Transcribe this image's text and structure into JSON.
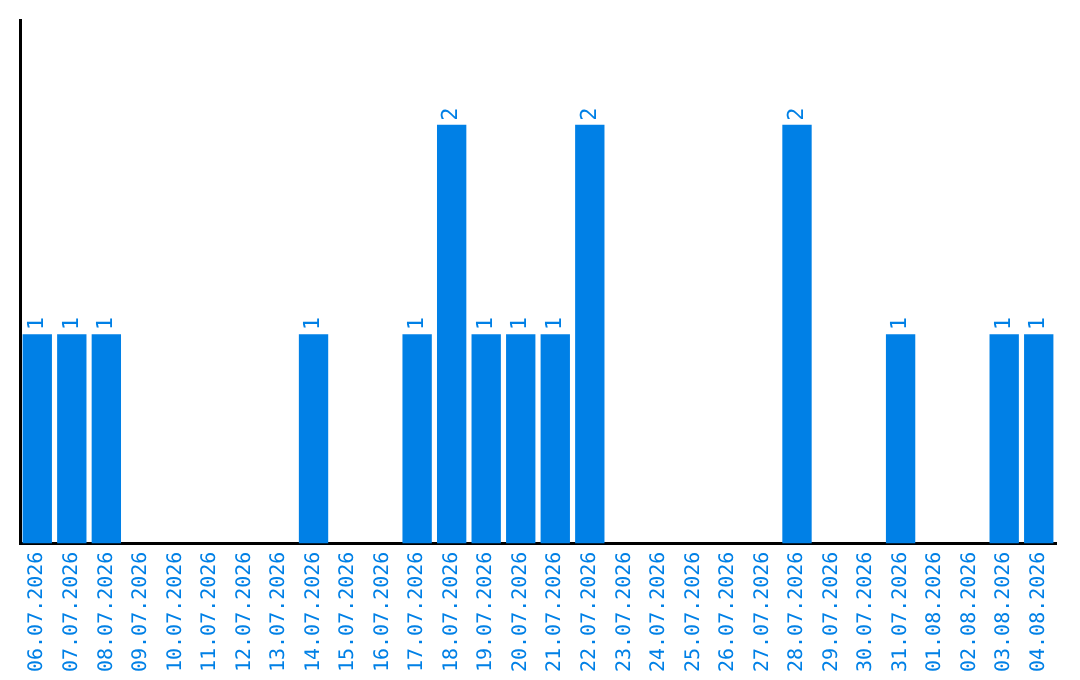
{
  "chart_data": {
    "type": "bar",
    "categories": [
      "06.07.2026",
      "07.07.2026",
      "08.07.2026",
      "09.07.2026",
      "10.07.2026",
      "11.07.2026",
      "12.07.2026",
      "13.07.2026",
      "14.07.2026",
      "15.07.2026",
      "16.07.2026",
      "17.07.2026",
      "18.07.2026",
      "19.07.2026",
      "20.07.2026",
      "21.07.2026",
      "22.07.2026",
      "23.07.2026",
      "24.07.2026",
      "25.07.2026",
      "26.07.2026",
      "27.07.2026",
      "28.07.2026",
      "29.07.2026",
      "30.07.2026",
      "31.07.2026",
      "01.08.2026",
      "02.08.2026",
      "03.08.2026",
      "04.08.2026"
    ],
    "values": [
      1,
      1,
      1,
      0,
      0,
      0,
      0,
      0,
      1,
      0,
      0,
      1,
      2,
      1,
      1,
      1,
      2,
      0,
      0,
      0,
      0,
      0,
      2,
      0,
      0,
      1,
      0,
      0,
      1,
      1
    ],
    "value_labels": [
      "1",
      "1",
      "1",
      null,
      null,
      null,
      null,
      null,
      "1",
      null,
      null,
      "1",
      "2",
      "1",
      "1",
      "1",
      "2",
      null,
      null,
      null,
      null,
      null,
      "2",
      null,
      null,
      "1",
      null,
      null,
      "1",
      "1"
    ],
    "color": "#0080e6",
    "grid": false,
    "legend": false
  }
}
